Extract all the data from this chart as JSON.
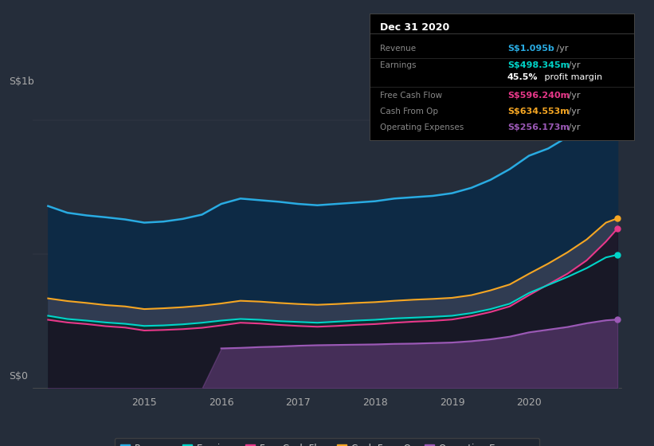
{
  "bg_color": "#252d3a",
  "plot_bg_color": "#252d3a",
  "ylabel_top": "S$1b",
  "ylabel_bottom": "S$0",
  "colors": {
    "revenue": "#29abe2",
    "earnings": "#00d4c8",
    "free_cash_flow": "#e8388a",
    "cash_from_op": "#f5a623",
    "operating_expenses": "#9b59b6"
  },
  "revenue_fill": "#0d2a45",
  "earnings_fill": "#0a3d3a",
  "cashop_fill": "#3a4050",
  "fcf_fill": "#2d2040",
  "opex_fill": "#3a2060",
  "legend_labels": [
    "Revenue",
    "Earnings",
    "Free Cash Flow",
    "Cash From Op",
    "Operating Expenses"
  ],
  "info_title": "Dec 31 2020",
  "info_rows": [
    {
      "label": "Revenue",
      "value": "S$1.095b",
      "suffix": " /yr",
      "color": "#29abe2",
      "divider_before": false
    },
    {
      "label": "Earnings",
      "value": "S$498.345m",
      "suffix": " /yr",
      "color": "#00d4c8",
      "divider_before": false
    },
    {
      "label": "",
      "value": "45.5%",
      "suffix": " profit margin",
      "color": "#ffffff",
      "bold": true,
      "divider_before": false
    },
    {
      "label": "Free Cash Flow",
      "value": "S$596.240m",
      "suffix": " /yr",
      "color": "#e8388a",
      "divider_before": true
    },
    {
      "label": "Cash From Op",
      "value": "S$634.553m",
      "suffix": " /yr",
      "color": "#f5a623",
      "divider_before": false
    },
    {
      "label": "Operating Expenses",
      "value": "S$256.173m",
      "suffix": " /yr",
      "color": "#9b59b6",
      "divider_before": false
    }
  ]
}
